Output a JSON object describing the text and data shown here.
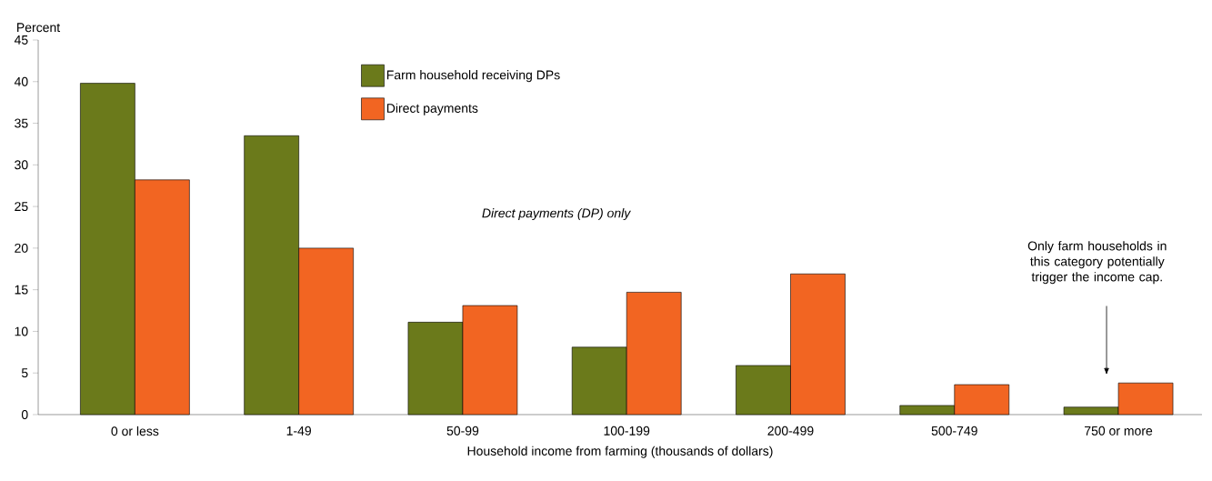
{
  "chart_data": {
    "type": "bar",
    "ylabel": "Percent",
    "xlabel": "Household income from farming (thousands of dollars)",
    "categories": [
      "0 or less",
      "1-49",
      "50-99",
      "100-199",
      "200-499",
      "500-749",
      "750 or more"
    ],
    "series": [
      {
        "name": "Farm household receiving DPs",
        "color": "#6b7a1b",
        "values": [
          39.8,
          33.5,
          11.1,
          8.1,
          5.9,
          1.1,
          0.9
        ]
      },
      {
        "name": "Direct payments",
        "color": "#f26522",
        "values": [
          28.2,
          20.0,
          13.1,
          14.7,
          16.9,
          3.6,
          3.8
        ]
      }
    ],
    "ylim": [
      0,
      45
    ],
    "yticks": [
      0,
      5,
      10,
      15,
      20,
      25,
      30,
      35,
      40,
      45
    ],
    "legend": "top left",
    "annotations": [
      "Direct payments (DP) only",
      "Only farm households in this category potentially trigger the income cap."
    ],
    "grid": false
  }
}
